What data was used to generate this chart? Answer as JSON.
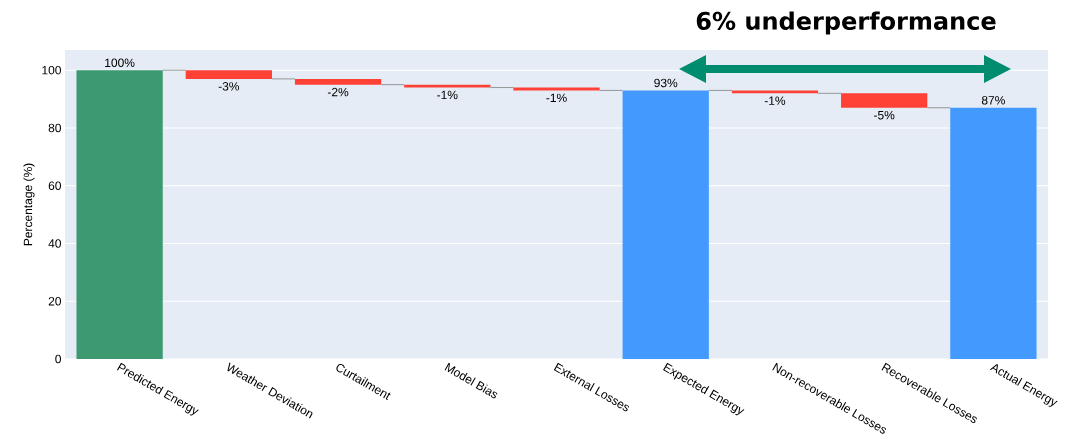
{
  "chart_data": {
    "type": "bar",
    "annotations": [
      "6% underperformance"
    ],
    "ylabel": "Percentage (%)",
    "categories": [
      "Predicted Energy",
      "Weather Deviation",
      "Curtailment",
      "Model Bias",
      "External Losses",
      "Expected Energy",
      "Non-recoverable Losses",
      "Recoverable Losses",
      "Actual Energy"
    ],
    "values": [
      100,
      -3,
      -2,
      -1,
      -1,
      93,
      -1,
      -5,
      87
    ],
    "base": [
      0,
      100,
      97,
      95,
      94,
      0,
      93,
      92,
      0
    ],
    "colors": [
      "#3d9970",
      "#ff4136",
      "#ff4136",
      "#ff4136",
      "#ff4136",
      "#4499ff",
      "#ff4136",
      "#ff4136",
      "#4499ff"
    ],
    "value_labels": [
      "100%",
      "-3%",
      "-2%",
      "-1%",
      "-1%",
      "93%",
      "-1%",
      "-5%",
      "87%"
    ],
    "ylim": [
      0,
      107
    ],
    "yticks": [
      0,
      20,
      40,
      60,
      80,
      100
    ],
    "grid": "y"
  }
}
